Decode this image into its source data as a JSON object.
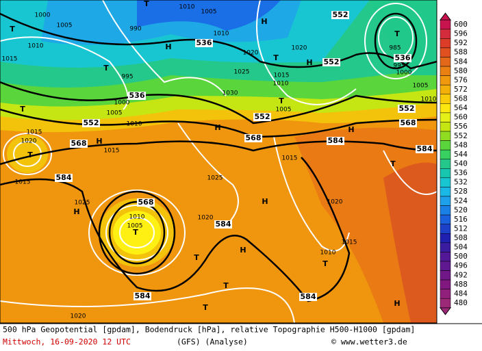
{
  "map_labels": {
    "height_labels": [
      "552",
      "536",
      "552",
      "536",
      "552",
      "552",
      "568",
      "568",
      "584",
      "584",
      "568",
      "552",
      "536",
      "584",
      "568",
      "584",
      "584",
      "584"
    ],
    "pressure_labels": [
      "1000",
      "1005",
      "990",
      "1010",
      "1005",
      "1010",
      "1020",
      "1020",
      "995",
      "1000",
      "1005",
      "1010",
      "1025",
      "1015",
      "1010",
      "1030",
      "1005",
      "1015",
      "1025",
      "1015",
      "1020",
      "1025",
      "1020",
      "1010",
      "1005",
      "1015",
      "1010",
      "1020",
      "1015",
      "1015",
      "1020",
      "1015",
      "1010",
      "985",
      "995",
      "1000",
      "1005",
      "1010"
    ],
    "centers": [
      "T",
      "T",
      "H",
      "T",
      "T",
      "H",
      "T",
      "H",
      "T",
      "H",
      "H",
      "H",
      "T",
      "H",
      "H",
      "T",
      "T",
      "H",
      "T",
      "T",
      "T",
      "H",
      "T",
      "T"
    ]
  },
  "colorbar": {
    "labels": [
      600,
      596,
      592,
      588,
      584,
      580,
      576,
      572,
      568,
      564,
      560,
      556,
      552,
      548,
      544,
      540,
      536,
      532,
      528,
      524,
      520,
      516,
      512,
      508,
      504,
      500,
      496,
      492,
      488,
      484,
      480
    ],
    "colors": [
      "#c8144e",
      "#d42c3c",
      "#dc3c28",
      "#e05020",
      "#e4681a",
      "#ea8012",
      "#f0980e",
      "#f4b00a",
      "#f8cc08",
      "#fce810",
      "#e4f018",
      "#c6e614",
      "#90dc20",
      "#5ad63c",
      "#38d060",
      "#24c88a",
      "#18c6b0",
      "#18c6d2",
      "#1ab8e6",
      "#1ea0ea",
      "#1a80e6",
      "#1a60dc",
      "#1c40c8",
      "#2020b0",
      "#3a1ca0",
      "#521898",
      "#601890",
      "#701888",
      "#801880",
      "#90207c",
      "#9c2878"
    ]
  },
  "footer": {
    "caption": "500 hPa Geopotential [gpdam], Bodendruck [hPa], relative Topographie H500-H1000 [gpdam]",
    "date": "Mittwoch, 16-09-2020  12 UTC",
    "model": "(GFS)  (Analyse)",
    "source": "© www.wetter3.de"
  }
}
